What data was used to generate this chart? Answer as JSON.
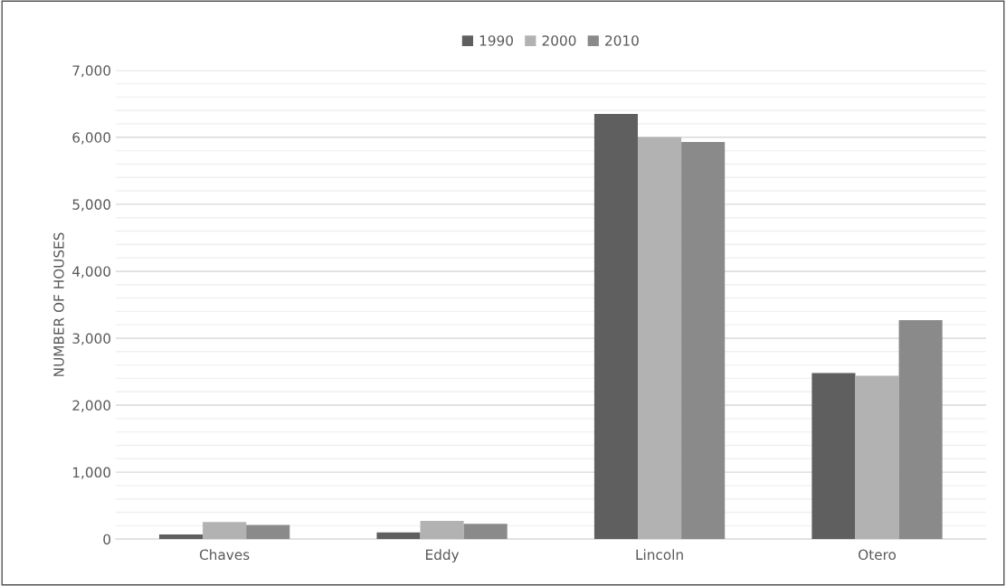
{
  "chart_data": {
    "type": "bar",
    "ylabel": "NUMBER OF HOUSES",
    "categories": [
      "Chaves",
      "Eddy",
      "Lincoln",
      "Otero"
    ],
    "series": [
      {
        "name": "1990",
        "color": "#5f5f5f",
        "values": [
          70,
          100,
          6350,
          2480
        ]
      },
      {
        "name": "2000",
        "color": "#b2b2b2",
        "values": [
          255,
          273,
          6000,
          2440
        ]
      },
      {
        "name": "2010",
        "color": "#8a8a8a",
        "values": [
          210,
          227,
          5930,
          3270
        ]
      }
    ],
    "ylim": [
      0,
      7000
    ],
    "yticks": [
      {
        "value": 0,
        "label": "0"
      },
      {
        "value": 1000,
        "label": "1,000"
      },
      {
        "value": 2000,
        "label": "2,000"
      },
      {
        "value": 3000,
        "label": "3,000"
      },
      {
        "value": 4000,
        "label": "4,000"
      },
      {
        "value": 5000,
        "label": "5,000"
      },
      {
        "value": 6000,
        "label": "6,000"
      },
      {
        "value": 7000,
        "label": "7,000"
      }
    ],
    "grid": "y",
    "legend": "top"
  }
}
